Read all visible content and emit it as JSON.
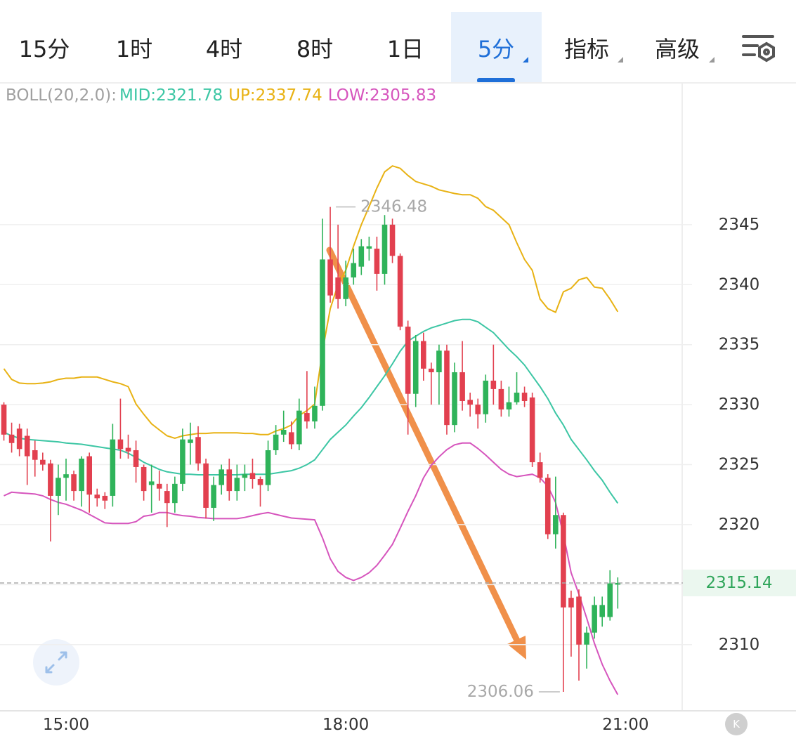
{
  "toolbar": {
    "tabs": [
      "15分",
      "1时",
      "4时",
      "8时",
      "1日",
      "5分",
      "指标",
      "高级"
    ],
    "selected": 5,
    "k_icon": "K"
  },
  "chart_data": {
    "type": "candlestick",
    "indicator": "BOLL(20,2.0):",
    "up_color": "#e2404f",
    "down_color": "#2fb35a",
    "xlim": [
      -0.5,
      87.2
    ],
    "xticks": [
      {
        "value": 8,
        "label": "15:00"
      },
      {
        "value": 44,
        "label": "18:00"
      },
      {
        "value": 80,
        "label": "21:00"
      }
    ],
    "ylim": [
      2304.6,
      2356.7
    ],
    "yticks": [
      2310,
      2315,
      2320,
      2325,
      2330,
      2335,
      2340,
      2345
    ],
    "grid": true,
    "open": [
      2330,
      2327.5,
      2328,
      2327.4,
      2326.2,
      2325.4,
      2325.1,
      2322.4,
      2323.9,
      2324.2,
      2322.8,
      2325.7,
      2322.5,
      2322.4,
      2322.4,
      2327.1,
      2326.4,
      2326.2,
      2324.8,
      2323.3,
      2323.4,
      2322.8,
      2321.8,
      2323.4,
      2326.8,
      2327.3,
      2325.1,
      2321.4,
      2323.3,
      2324.6,
      2322.8,
      2323.9,
      2324.3,
      2323.8,
      2323.3,
      2326.2,
      2327.5,
      2327.7,
      2326.7,
      2329.3,
      2328.6,
      2329.9,
      2342.1,
      2340.6,
      2338.8,
      2340.6,
      2341.5,
      2343,
      2343,
      2340.9,
      2345,
      2342.4,
      2336.5,
      2330.9,
      2335.3,
      2333,
      2332.7,
      2334.5,
      2328.3,
      2332.7,
      2330.4,
      2330,
      2329.2,
      2332,
      2331.3,
      2329.6,
      2330.2,
      2331,
      2330.6,
      2325.2,
      2323.9,
      2319.2,
      2320.8,
      2313.9,
      2314,
      2310,
      2311,
      2312.3,
      2312.3,
      2315
    ],
    "high": [
      2330.2,
      2328.5,
      2328.4,
      2328,
      2327,
      2326,
      2325.4,
      2325,
      2325.5,
      2324.5,
      2325.7,
      2326,
      2323,
      2322.7,
      2328.4,
      2330.5,
      2327.5,
      2327,
      2325,
      2325,
      2324.5,
      2323.4,
      2324,
      2328,
      2328.5,
      2328.2,
      2325.5,
      2324,
      2325,
      2325.5,
      2325,
      2325,
      2325.5,
      2324,
      2327,
      2328.3,
      2329.5,
      2328.6,
      2330.5,
      2332.8,
      2331.5,
      2345.5,
      2346.48,
      2345,
      2342,
      2343,
      2343.8,
      2344,
      2344,
      2345.8,
      2345.5,
      2342.6,
      2337,
      2335.8,
      2336,
      2333.5,
      2335,
      2335,
      2333.5,
      2335.3,
      2331,
      2330.5,
      2332.5,
      2335,
      2332,
      2331.5,
      2332.7,
      2331.5,
      2331,
      2326,
      2324.2,
      2324,
      2321,
      2314.5,
      2314.6,
      2311.5,
      2314,
      2314,
      2316.2,
      2315.6
    ],
    "low": [
      2327,
      2326,
      2325.7,
      2323.3,
      2324,
      2324.5,
      2318.6,
      2320.8,
      2322,
      2322,
      2321.5,
      2321,
      2321.5,
      2321.3,
      2321.5,
      2325.5,
      2325.5,
      2323.5,
      2322,
      2321,
      2322,
      2319.8,
      2321,
      2322.8,
      2325,
      2324.5,
      2320.5,
      2320.3,
      2322.5,
      2322,
      2322,
      2322.8,
      2323,
      2321.5,
      2322.8,
      2325.8,
      2326.9,
      2326.3,
      2326.2,
      2328,
      2328,
      2329.5,
      2338.5,
      2338,
      2338.2,
      2340,
      2340.8,
      2342,
      2339.5,
      2340,
      2341.8,
      2336.2,
      2327.5,
      2329.8,
      2332,
      2330,
      2330,
      2327.5,
      2327.7,
      2329.5,
      2329,
      2328,
      2328.5,
      2330,
      2329,
      2329,
      2330,
      2329.8,
      2324.8,
      2323.5,
      2318.8,
      2318,
      2306.06,
      2309,
      2307,
      2308,
      2310.5,
      2311.5,
      2312,
      2313
    ],
    "close": [
      2327.5,
      2326.8,
      2326.3,
      2325.7,
      2325.4,
      2325,
      2322.4,
      2323.9,
      2324.2,
      2322.8,
      2325.5,
      2322.5,
      2322.2,
      2322,
      2327.1,
      2326.3,
      2326.1,
      2324.8,
      2322.8,
      2323.6,
      2323,
      2321.8,
      2323.4,
      2327.1,
      2327.1,
      2325.1,
      2321.4,
      2323.3,
      2324.6,
      2322.8,
      2323.9,
      2324.2,
      2323.8,
      2323.3,
      2326.2,
      2327.5,
      2327.9,
      2326.7,
      2329.5,
      2328.6,
      2329.9,
      2342.1,
      2339.1,
      2338.8,
      2340.6,
      2341.8,
      2343.2,
      2343.2,
      2340.9,
      2345,
      2342.4,
      2336.5,
      2330.9,
      2335.3,
      2333,
      2332.7,
      2334.5,
      2328.3,
      2332.7,
      2330.3,
      2330,
      2329.2,
      2332,
      2331.3,
      2329.6,
      2330.2,
      2331,
      2330.3,
      2325.2,
      2323.9,
      2319.2,
      2320.8,
      2313.1,
      2313.1,
      2310,
      2311,
      2313.3,
      2313.3,
      2315.1,
      2315.14
    ],
    "series": [
      {
        "name": "MID:",
        "color": "#3cc6a4",
        "values": [
          2327.7,
          2327.4,
          2327.2,
          2327.1,
          2327.05,
          2327,
          2326.95,
          2326.9,
          2326.8,
          2326.75,
          2326.7,
          2326.6,
          2326.5,
          2326.4,
          2326.3,
          2326.2,
          2325.95,
          2325.6,
          2325.2,
          2324.9,
          2324.6,
          2324.4,
          2324.3,
          2324.2,
          2324.2,
          2324.15,
          2324.15,
          2324.15,
          2324.15,
          2324.15,
          2324.15,
          2324.2,
          2324.2,
          2324.2,
          2324.2,
          2324.3,
          2324.4,
          2324.5,
          2324.7,
          2325,
          2325.4,
          2326.25,
          2327.1,
          2327.7,
          2328.3,
          2329.05,
          2329.75,
          2330.6,
          2331.5,
          2332.4,
          2333.4,
          2334.45,
          2335.3,
          2335.7,
          2336.1,
          2336.4,
          2336.6,
          2336.8,
          2337,
          2337.1,
          2337.1,
          2336.9,
          2336.45,
          2336,
          2335.3,
          2334.6,
          2334,
          2333.3,
          2332.4,
          2331.5,
          2330.5,
          2329.3,
          2328.3,
          2327.1,
          2326.25,
          2325.4,
          2324.5,
          2323.7,
          2322.7,
          2321.78
        ]
      },
      {
        "name": "UP:",
        "color": "#e8b214",
        "values": [
          2333,
          2332.1,
          2331.8,
          2331.75,
          2331.75,
          2331.8,
          2331.9,
          2332.1,
          2332.2,
          2332.2,
          2332.3,
          2332.3,
          2332.3,
          2332.1,
          2331.9,
          2331.75,
          2331.5,
          2330.05,
          2329.2,
          2328.4,
          2327.9,
          2327.4,
          2327.2,
          2327.4,
          2327.5,
          2327.6,
          2327.6,
          2327.65,
          2327.65,
          2327.65,
          2327.65,
          2327.6,
          2327.6,
          2327.5,
          2327.5,
          2327.8,
          2328,
          2328.3,
          2329.1,
          2329.5,
          2330.05,
          2334.45,
          2338,
          2340,
          2341.2,
          2343.2,
          2345,
          2346.5,
          2348.05,
          2349.4,
          2349.9,
          2349.7,
          2349.1,
          2348.6,
          2348.4,
          2348.2,
          2347.9,
          2347.75,
          2347.6,
          2347.5,
          2347.5,
          2347.2,
          2346.5,
          2346.2,
          2345.6,
          2345,
          2343.5,
          2342.1,
          2341.2,
          2338.8,
          2338,
          2337.7,
          2339.4,
          2339.7,
          2340.4,
          2340.6,
          2339.8,
          2339.7,
          2338.8,
          2337.74
        ]
      },
      {
        "name": "LOW:",
        "color": "#d655bd",
        "values": [
          2322.4,
          2322.7,
          2322.65,
          2322.6,
          2322.55,
          2322.4,
          2322.1,
          2321.85,
          2321.7,
          2321.45,
          2321.2,
          2320.85,
          2320.5,
          2320.15,
          2320.1,
          2320.1,
          2320.1,
          2320.25,
          2320.7,
          2320.8,
          2321,
          2321,
          2320.85,
          2320.75,
          2320.7,
          2320.6,
          2320.55,
          2320.5,
          2320.5,
          2320.5,
          2320.5,
          2320.6,
          2320.75,
          2320.9,
          2321,
          2320.85,
          2320.7,
          2320.55,
          2320.5,
          2320.45,
          2320.4,
          2318.9,
          2317.15,
          2316.1,
          2315.6,
          2315.35,
          2315.6,
          2316,
          2316.6,
          2317.45,
          2318.35,
          2319.7,
          2321.1,
          2322.4,
          2323.9,
          2324.95,
          2325.65,
          2326.25,
          2326.65,
          2326.8,
          2326.8,
          2326.35,
          2325.8,
          2325.2,
          2324.6,
          2324.2,
          2324,
          2324.1,
          2324.2,
          2323.9,
          2323.2,
          2321.85,
          2319.2,
          2316,
          2314.2,
          2312.2,
          2310.1,
          2308.35,
          2307,
          2305.83
        ]
      }
    ]
  }
}
